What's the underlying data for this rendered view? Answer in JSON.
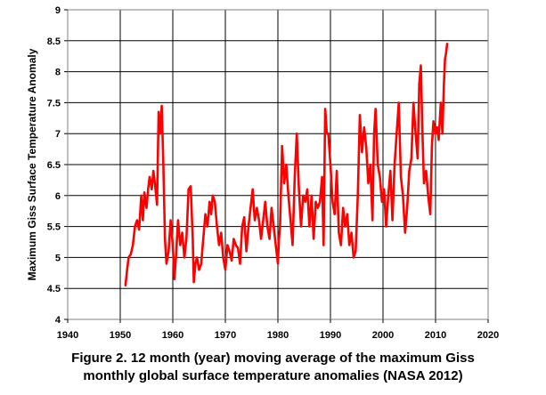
{
  "caption": {
    "line1": "Figure 2. 12 month (year) moving average of the maximum Giss",
    "line2": "monthly global surface temperature anomalies (NASA 2012)"
  },
  "colors": {
    "series": "#ff0000",
    "grid": "#000000",
    "frame": "#808080",
    "background": "#ffffff"
  },
  "chart_data": {
    "type": "line",
    "title": "",
    "xlabel": "",
    "ylabel": "Maximum Giss Surface Temperature Anomaly",
    "xlim": [
      1940,
      2020
    ],
    "ylim": [
      4,
      9
    ],
    "xticks": [
      1940,
      1950,
      1960,
      1970,
      1980,
      1990,
      2000,
      2010,
      2020
    ],
    "yticks": [
      4,
      4.5,
      5,
      5.5,
      6,
      6.5,
      7,
      7.5,
      8,
      8.5,
      9
    ],
    "grid": {
      "horizontal": true,
      "vertical": true
    },
    "legend": "none",
    "series": [
      {
        "x": [
          1951.0,
          1951.3,
          1951.6,
          1952.0,
          1952.4,
          1952.8,
          1953.2,
          1953.6,
          1954.0,
          1954.3,
          1954.6,
          1955.0,
          1955.3,
          1955.6,
          1956.0,
          1956.3,
          1956.6,
          1957.0,
          1957.3,
          1957.6,
          1957.9,
          1958.2,
          1958.5,
          1958.8,
          1959.2,
          1959.6,
          1960.0,
          1960.3,
          1960.6,
          1961.0,
          1961.4,
          1961.8,
          1962.2,
          1962.6,
          1963.0,
          1963.4,
          1963.8,
          1964.0,
          1964.3,
          1964.6,
          1965.0,
          1965.4,
          1965.8,
          1966.2,
          1966.6,
          1967.0,
          1967.3,
          1967.6,
          1968.0,
          1968.4,
          1968.8,
          1969.2,
          1969.6,
          1970.0,
          1970.4,
          1970.8,
          1971.2,
          1971.6,
          1972.0,
          1972.4,
          1972.8,
          1973.2,
          1973.6,
          1974.0,
          1974.4,
          1974.8,
          1975.2,
          1975.6,
          1976.0,
          1976.4,
          1976.8,
          1977.2,
          1977.6,
          1978.0,
          1978.4,
          1978.8,
          1979.2,
          1979.6,
          1980.0,
          1980.2,
          1980.4,
          1980.8,
          1981.2,
          1981.6,
          1982.0,
          1982.4,
          1982.8,
          1983.2,
          1983.6,
          1984.0,
          1984.4,
          1984.8,
          1985.2,
          1985.6,
          1986.0,
          1986.4,
          1986.8,
          1987.2,
          1987.6,
          1988.0,
          1988.4,
          1988.7,
          1989.0,
          1989.3,
          1989.6,
          1990.0,
          1990.4,
          1990.8,
          1991.2,
          1991.6,
          1992.0,
          1992.4,
          1992.8,
          1993.2,
          1993.6,
          1994.0,
          1994.4,
          1994.8,
          1995.2,
          1995.6,
          1996.0,
          1996.4,
          1996.8,
          1997.2,
          1997.6,
          1998.0,
          1998.3,
          1998.6,
          1999.0,
          1999.4,
          1999.8,
          2000.2,
          2000.6,
          2001.0,
          2001.4,
          2001.8,
          2002.2,
          2002.6,
          2003.0,
          2003.4,
          2003.8,
          2004.2,
          2004.6,
          2005.0,
          2005.4,
          2005.8,
          2006.2,
          2006.6,
          2006.9,
          2007.2,
          2007.5,
          2007.8,
          2008.2,
          2008.6,
          2009.0,
          2009.3,
          2009.6,
          2010.0,
          2010.3,
          2010.6,
          2011.0,
          2011.3,
          2011.6,
          2011.8,
          2012.0,
          2012.2
        ],
        "y": [
          4.55,
          4.8,
          5.0,
          5.05,
          5.2,
          5.5,
          5.6,
          5.45,
          6.0,
          5.6,
          6.05,
          5.8,
          6.1,
          6.3,
          6.1,
          6.4,
          6.2,
          5.85,
          7.35,
          7.0,
          7.45,
          6.5,
          5.3,
          4.9,
          5.1,
          5.6,
          5.2,
          4.65,
          5.0,
          5.6,
          5.2,
          5.4,
          5.0,
          5.3,
          6.1,
          6.15,
          5.3,
          4.6,
          4.9,
          5.0,
          4.8,
          4.9,
          5.3,
          5.7,
          5.5,
          5.9,
          5.7,
          6.0,
          5.9,
          5.5,
          5.2,
          5.4,
          5.0,
          4.8,
          5.2,
          5.1,
          4.95,
          5.3,
          5.2,
          5.15,
          4.9,
          5.5,
          5.65,
          5.1,
          5.5,
          5.8,
          6.1,
          5.6,
          5.8,
          5.6,
          5.3,
          5.6,
          5.9,
          5.5,
          5.3,
          5.8,
          5.5,
          5.2,
          4.9,
          5.3,
          5.5,
          6.8,
          6.2,
          6.5,
          6.0,
          5.6,
          5.2,
          6.3,
          7.0,
          6.1,
          5.5,
          6.0,
          5.9,
          6.1,
          5.5,
          6.0,
          5.3,
          5.9,
          5.8,
          5.9,
          6.3,
          5.2,
          7.4,
          7.0,
          7.0,
          6.5,
          5.9,
          5.7,
          6.4,
          5.4,
          5.2,
          5.8,
          5.5,
          5.7,
          5.2,
          5.4,
          5.0,
          5.1,
          6.0,
          7.3,
          6.7,
          7.1,
          6.8,
          6.2,
          6.5,
          5.6,
          7.0,
          7.4,
          6.5,
          6.3,
          5.9,
          6.1,
          5.5,
          6.0,
          6.4,
          5.6,
          6.5,
          7.0,
          7.5,
          6.3,
          6.0,
          5.4,
          5.8,
          6.4,
          6.6,
          7.5,
          7.0,
          6.6,
          7.8,
          8.1,
          7.0,
          6.2,
          6.4,
          6.0,
          5.7,
          6.8,
          7.2,
          7.0,
          7.1,
          6.9,
          7.5,
          7.0,
          7.8,
          8.2,
          8.3,
          8.45
        ]
      }
    ]
  }
}
